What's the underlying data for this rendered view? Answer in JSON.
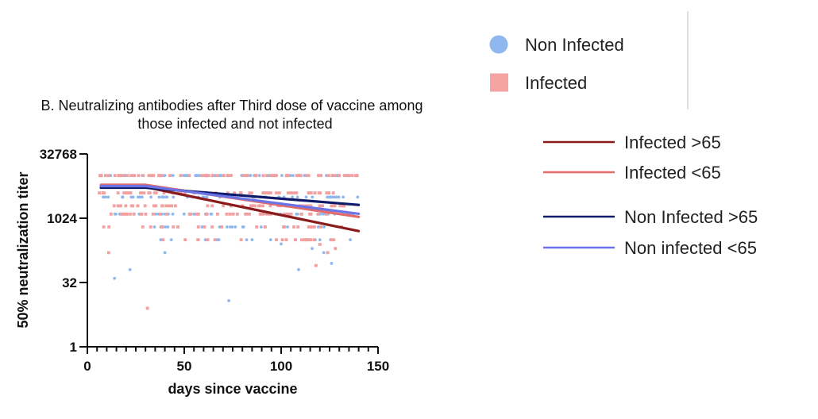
{
  "chart_data": {
    "type": "scatter",
    "title_line1": "B. Neutralizing antibodies after Third dose of vaccine among",
    "title_line2": "those infected and not infected",
    "xlabel": "days since vaccine",
    "ylabel": "50% neutralization titer",
    "xlim": [
      0,
      150
    ],
    "ylim": [
      1,
      32768
    ],
    "y_scale": "log2",
    "x_ticks": [
      0,
      50,
      100,
      150
    ],
    "y_ticks": [
      1,
      32,
      1024,
      32768
    ],
    "x_tick_labels": [
      "0",
      "50",
      "100",
      "150"
    ],
    "y_tick_labels": [
      "1",
      "32",
      "1024",
      "32768"
    ],
    "scatter_series": [
      {
        "name": "Non Infected",
        "marker": "circle",
        "color": "#8fb8ee",
        "bands": [
          {
            "y": 10240,
            "x_from": 12,
            "x_to": 145,
            "count": 70
          },
          {
            "y": 3200,
            "x_from": 8,
            "x_to": 140,
            "count": 55
          },
          {
            "y": 1280,
            "x_from": 10,
            "x_to": 138,
            "count": 45
          },
          {
            "y": 640,
            "x_from": 20,
            "x_to": 128,
            "count": 18
          },
          {
            "y": 320,
            "x_from": 35,
            "x_to": 145,
            "count": 14
          }
        ],
        "points": [
          {
            "x": 14,
            "y": 40
          },
          {
            "x": 22,
            "y": 64
          },
          {
            "x": 40,
            "y": 160
          },
          {
            "x": 73,
            "y": 12
          },
          {
            "x": 109,
            "y": 64
          },
          {
            "x": 126,
            "y": 90
          },
          {
            "x": 116,
            "y": 200
          },
          {
            "x": 122,
            "y": 160
          },
          {
            "x": 100,
            "y": 256
          },
          {
            "x": 85,
            "y": 320
          }
        ]
      },
      {
        "name": "Infected",
        "marker": "square",
        "color": "#f2a0a0",
        "bands": [
          {
            "y": 10240,
            "x_from": 6,
            "x_to": 140,
            "count": 75
          },
          {
            "y": 4000,
            "x_from": 6,
            "x_to": 130,
            "count": 60
          },
          {
            "y": 2000,
            "x_from": 10,
            "x_to": 138,
            "count": 50
          },
          {
            "y": 1280,
            "x_from": 12,
            "x_to": 140,
            "count": 45
          },
          {
            "y": 640,
            "x_from": 7,
            "x_to": 132,
            "count": 24
          },
          {
            "y": 320,
            "x_from": 35,
            "x_to": 130,
            "count": 18
          }
        ],
        "points": [
          {
            "x": 11,
            "y": 160
          },
          {
            "x": 31,
            "y": 8
          },
          {
            "x": 118,
            "y": 80
          },
          {
            "x": 124,
            "y": 160
          },
          {
            "x": 128,
            "y": 200
          },
          {
            "x": 120,
            "y": 250
          },
          {
            "x": 126,
            "y": 320
          }
        ]
      }
    ],
    "line_series": [
      {
        "name": "Infected >65",
        "color": "#8b1a1a",
        "x": [
          7,
          30,
          140
        ],
        "y": [
          5500,
          5500,
          512
        ]
      },
      {
        "name": "Infected <65",
        "color": "#e46a6a",
        "x": [
          7,
          30,
          140
        ],
        "y": [
          6200,
          6200,
          1100
        ]
      },
      {
        "name": "Non Infected >65",
        "color": "#0f1a6b",
        "x": [
          7,
          30,
          140
        ],
        "y": [
          5300,
          5300,
          2100
        ]
      },
      {
        "name": "Non infected <65",
        "color": "#6a74e6",
        "x": [
          7,
          30,
          140
        ],
        "y": [
          5800,
          5800,
          1300
        ]
      }
    ],
    "legend": {
      "placement": "right",
      "markers": [
        {
          "label": "Non Infected",
          "marker": "circle",
          "color": "#8fb8ee"
        },
        {
          "label": "Infected",
          "marker": "square",
          "color": "#f5a3a3"
        }
      ],
      "lines": [
        {
          "label": "Infected >65",
          "color": "#8b1a1a"
        },
        {
          "label": "Infected <65",
          "color": "#e46a6a"
        },
        {
          "label": "Non Infected >65",
          "color": "#0f1a6b"
        },
        {
          "label": "Non infected <65",
          "color": "#6a74e6"
        }
      ]
    },
    "grid": false
  }
}
